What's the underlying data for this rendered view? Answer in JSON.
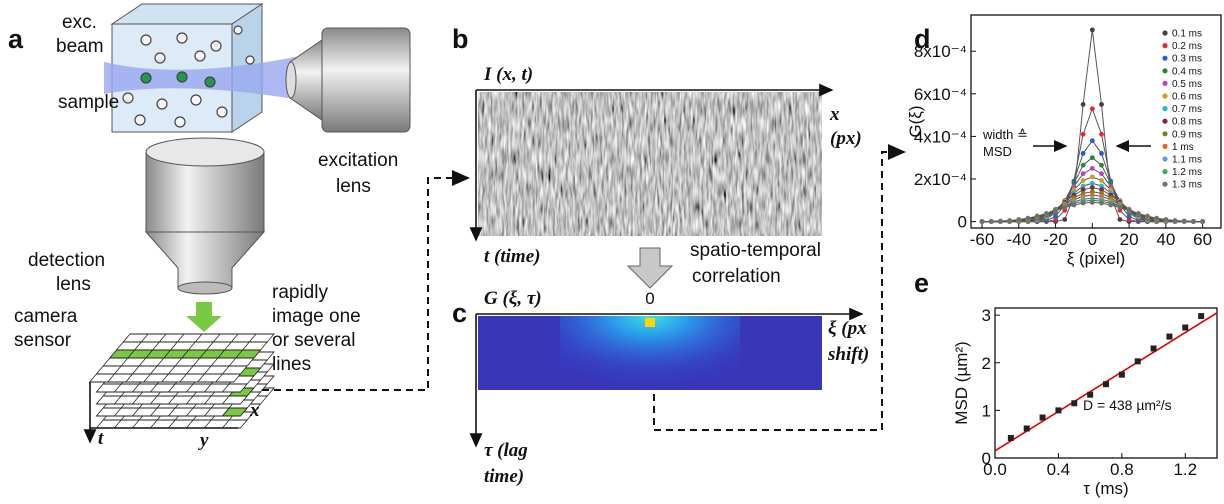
{
  "panels": {
    "a": {
      "label": "a",
      "exc_beam": [
        "exc.",
        "beam"
      ],
      "sample": "sample",
      "excitation_lens": [
        "excitation",
        "lens"
      ],
      "detection_lens": [
        "detection",
        "lens"
      ],
      "camera_sensor": [
        "camera",
        "sensor"
      ],
      "rapidly": [
        "rapidly",
        "image one",
        "or several",
        "lines"
      ],
      "axis_t": "t",
      "axis_y": "y",
      "axis_x": "x"
    },
    "b": {
      "label": "b",
      "title": "I (x, t)",
      "x_axis": [
        "x",
        "(px)"
      ],
      "t_axis": "t (time)"
    },
    "correlation": [
      "spatio-temporal",
      "correlation"
    ],
    "c": {
      "label": "c",
      "title": "G (ξ, τ)",
      "zero": "0",
      "x_axis": [
        "ξ (px",
        "shift)"
      ],
      "t_axis": [
        "τ (lag",
        "time)"
      ]
    },
    "d": {
      "label": "d"
    },
    "e": {
      "label": "e"
    }
  },
  "chart_data": [
    {
      "type": "line",
      "xlabel": "ξ (pixel)",
      "ylabel": "G(ξ)",
      "annotations": [
        "width ≙",
        "MSD"
      ],
      "legend": "upper right",
      "line_color": "#555555",
      "x": [
        -60,
        -55,
        -50,
        -45,
        -40,
        -35,
        -30,
        -25,
        -20,
        -15,
        -10,
        -5,
        0,
        5,
        10,
        15,
        20,
        25,
        30,
        35,
        40,
        45,
        50,
        55,
        60
      ],
      "series": [
        {
          "name": "0.1 ms",
          "color": "#404040",
          "values": [
            0,
            0,
            0,
            0,
            0,
            0,
            0,
            0,
            0,
            1e-05,
            0.00012,
            0.00055,
            0.0009,
            0.00055,
            0.00012,
            1e-05,
            0,
            0,
            0,
            0,
            0,
            0,
            0,
            0,
            0
          ]
        },
        {
          "name": "0.2 ms",
          "color": "#e8282d",
          "values": [
            0,
            0,
            0,
            0,
            0,
            0,
            0,
            0,
            9e-06,
            5.3e-05,
            0.00019,
            0.00041,
            0.00053,
            0.00041,
            0.00019,
            5.3e-05,
            9e-06,
            0,
            0,
            0,
            0,
            0,
            0,
            0,
            0
          ]
        },
        {
          "name": "0.3 ms",
          "color": "#1f5fe0",
          "values": [
            0,
            0,
            0,
            0,
            0,
            0,
            0,
            5e-06,
            2.4e-05,
            8e-05,
            0.00019,
            0.00032,
            0.00038,
            0.00032,
            0.00019,
            8e-05,
            2.4e-05,
            5e-06,
            0,
            0,
            0,
            0,
            0,
            0,
            0
          ]
        },
        {
          "name": "0.4 ms",
          "color": "#1e8c3a",
          "values": [
            0,
            0,
            0,
            0,
            0,
            0,
            3e-06,
            1.3e-05,
            4.1e-05,
            9.8e-05,
            0.00018,
            0.000265,
            0.0003,
            0.000265,
            0.00018,
            9.8e-05,
            4.1e-05,
            1.3e-05,
            3e-06,
            0,
            0,
            0,
            0,
            0,
            0
          ]
        },
        {
          "name": "0.5 ms",
          "color": "#c040c0",
          "values": [
            0,
            0,
            0,
            0,
            0,
            2e-06,
            6e-06,
            1.9e-05,
            4.8e-05,
            9.9e-05,
            0.000165,
            0.000225,
            0.00025,
            0.000225,
            0.000165,
            9.9e-05,
            4.8e-05,
            1.9e-05,
            6e-06,
            2e-06,
            0,
            0,
            0,
            0,
            0
          ]
        },
        {
          "name": "0.6 ms",
          "color": "#c8a020",
          "values": [
            0,
            0,
            0,
            0,
            1e-06,
            3e-06,
            9e-06,
            2.4e-05,
            5.2e-05,
            9.6e-05,
            0.000149,
            0.000193,
            0.00021,
            0.000193,
            0.000149,
            9.6e-05,
            5.2e-05,
            2.4e-05,
            9e-06,
            3e-06,
            1e-06,
            0,
            0,
            0,
            0
          ]
        },
        {
          "name": "0.7 ms",
          "color": "#20b8d0",
          "values": [
            0,
            0,
            0,
            0,
            2e-06,
            5e-06,
            1.3e-05,
            2.8e-05,
            5.5e-05,
            9.3e-05,
            0.000134,
            0.000167,
            0.00018,
            0.000167,
            0.000134,
            9.3e-05,
            5.5e-05,
            2.8e-05,
            1.3e-05,
            5e-06,
            2e-06,
            0,
            0,
            0,
            0
          ]
        },
        {
          "name": "0.8 ms",
          "color": "#8b2040",
          "values": [
            0,
            0,
            0,
            1e-06,
            3e-06,
            7e-06,
            1.6e-05,
            3.3e-05,
            5.8e-05,
            9e-05,
            0.000124,
            0.00015,
            0.00016,
            0.00015,
            0.000124,
            9e-05,
            5.8e-05,
            3.3e-05,
            1.6e-05,
            7e-06,
            3e-06,
            1e-06,
            0,
            0,
            0
          ]
        },
        {
          "name": "0.9 ms",
          "color": "#808020",
          "values": [
            0,
            0,
            0,
            2e-06,
            4e-06,
            9e-06,
            1.9e-05,
            3.5e-05,
            5.8e-05,
            8.5e-05,
            0.000112,
            0.000133,
            0.00014,
            0.000133,
            0.000112,
            8.5e-05,
            5.8e-05,
            3.5e-05,
            1.9e-05,
            9e-06,
            4e-06,
            2e-06,
            0,
            0,
            0
          ]
        },
        {
          "name": "1 ms",
          "color": "#e86a10",
          "values": [
            0,
            0,
            1e-06,
            2e-06,
            5e-06,
            1.1e-05,
            2.1e-05,
            3.7e-05,
            5.7e-05,
            8e-05,
            0.000103,
            0.000119,
            0.000125,
            0.000119,
            0.000103,
            8e-05,
            5.7e-05,
            3.7e-05,
            2.1e-05,
            1.1e-05,
            5e-06,
            2e-06,
            1e-06,
            0,
            0
          ]
        },
        {
          "name": "1.1 ms",
          "color": "#60a0e0",
          "values": [
            0,
            0,
            1e-06,
            3e-06,
            7e-06,
            1.3e-05,
            2.3e-05,
            3.7e-05,
            5.5e-05,
            7.4e-05,
            9.3e-05,
            0.000105,
            0.00011,
            0.000105,
            9.3e-05,
            7.4e-05,
            5.5e-05,
            3.7e-05,
            2.3e-05,
            1.3e-05,
            7e-06,
            3e-06,
            1e-06,
            0,
            0
          ]
        },
        {
          "name": "1.2 ms",
          "color": "#40b040",
          "values": [
            0,
            1e-06,
            2e-06,
            4e-06,
            8.5e-06,
            1.5e-05,
            2.5e-05,
            3.8e-05,
            5.4e-05,
            7.1e-05,
            8.6e-05,
            9.6e-05,
            0.0001,
            9.6e-05,
            8.6e-05,
            7.1e-05,
            5.4e-05,
            3.8e-05,
            2.5e-05,
            1.5e-05,
            8.5e-06,
            4e-06,
            2e-06,
            1e-06,
            0
          ]
        },
        {
          "name": "1.3 ms",
          "color": "#707070",
          "values": [
            0,
            1e-06,
            3e-06,
            5e-06,
            1e-05,
            1.6e-05,
            2.6e-05,
            3.8e-05,
            5.2e-05,
            6.6e-05,
            7.8e-05,
            8.7e-05,
            9e-05,
            8.7e-05,
            7.8e-05,
            6.6e-05,
            5.2e-05,
            3.8e-05,
            2.6e-05,
            1.6e-05,
            1e-05,
            5e-06,
            3e-06,
            1e-06,
            0
          ]
        }
      ],
      "xlim": [
        -66,
        70
      ],
      "ylim": [
        -3e-05,
        0.00097
      ],
      "xticks": [
        -60,
        -40,
        -20,
        0,
        20,
        40,
        60
      ],
      "yticks": [
        0,
        {
          "value": 0.0002,
          "label": "2x10⁻⁴"
        },
        {
          "value": 0.0004,
          "label": "4x10⁻⁴"
        },
        {
          "value": 0.0006,
          "label": "6x10⁻⁴"
        },
        {
          "value": 0.0008,
          "label": "8x10⁻⁴"
        }
      ]
    },
    {
      "type": "scatter",
      "xlabel": "τ (ms)",
      "ylabel": "MSD (µm²)",
      "annotation": "D = 438 µm²/s",
      "color": "#222222",
      "x": [
        0.1,
        0.2,
        0.3,
        0.4,
        0.5,
        0.6,
        0.7,
        0.8,
        0.9,
        1.0,
        1.1,
        1.2,
        1.3
      ],
      "values": [
        0.42,
        0.62,
        0.85,
        1.0,
        1.15,
        1.33,
        1.55,
        1.75,
        2.03,
        2.3,
        2.55,
        2.74,
        2.98
      ],
      "fit_line": {
        "x": [
          0,
          1.4
        ],
        "values": [
          0.15,
          3.05
        ],
        "color": "#e00000"
      },
      "xlim": [
        0,
        1.4
      ],
      "ylim": [
        0,
        3.15
      ],
      "xticks": [
        {
          "value": 0,
          "label": "0.0"
        },
        0.4,
        0.8,
        1.2
      ],
      "yticks": [
        0,
        1,
        2,
        3
      ]
    }
  ]
}
